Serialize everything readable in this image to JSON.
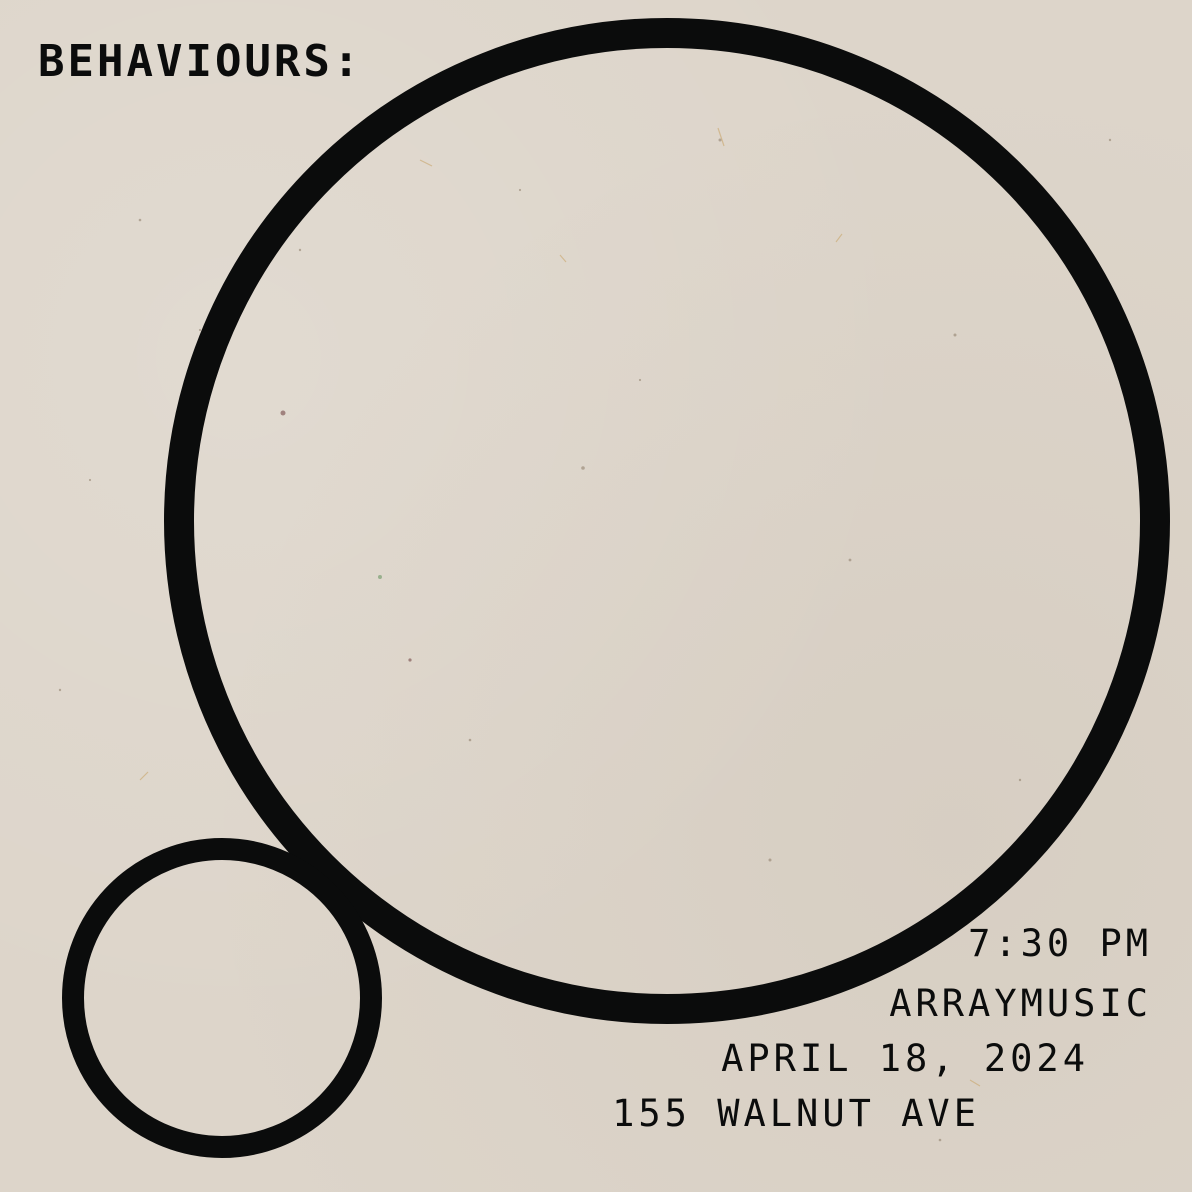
{
  "poster": {
    "title": "BEHAVIOURS:",
    "time": "7:30 PM",
    "venue": "ARRAYMUSIC",
    "date": "APRIL 18, 2024",
    "address": "155 WALNUT AVE"
  },
  "colors": {
    "background": "#ddd5ca",
    "ink": "#0b0c0c"
  }
}
